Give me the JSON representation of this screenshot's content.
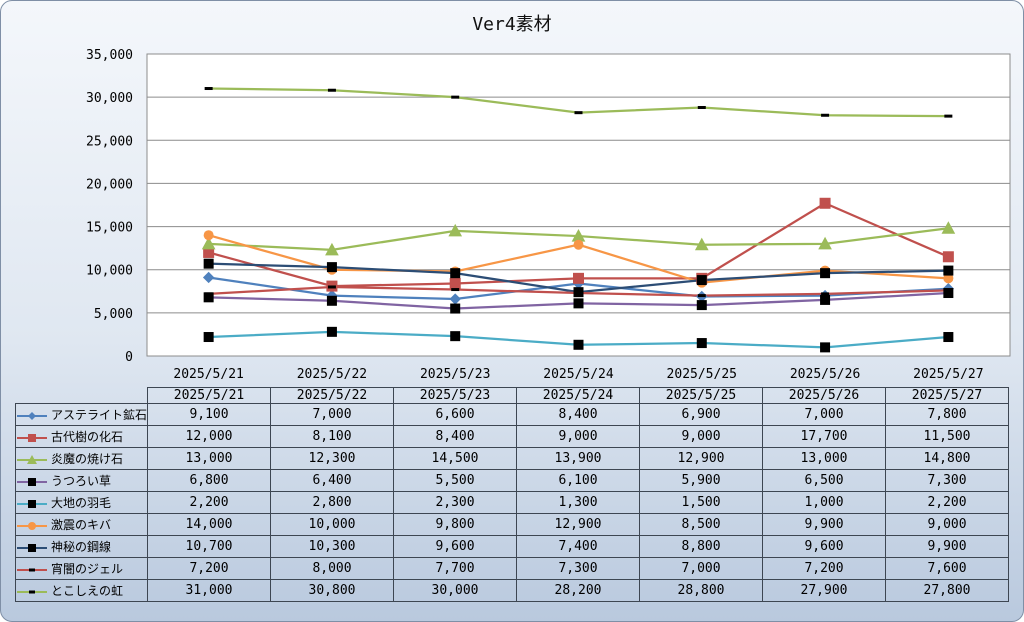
{
  "chart_data": {
    "type": "line",
    "title": "Ver4素材",
    "categories": [
      "2025/5/21",
      "2025/5/22",
      "2025/5/23",
      "2025/5/24",
      "2025/5/25",
      "2025/5/26",
      "2025/5/27"
    ],
    "ylim": [
      0,
      35000
    ],
    "yticks": [
      "0",
      "5,000",
      "10,000",
      "15,000",
      "20,000",
      "25,000",
      "30,000",
      "35,000"
    ],
    "ytick_values": [
      0,
      5000,
      10000,
      15000,
      20000,
      25000,
      30000,
      35000
    ],
    "grid": true,
    "legend_position": "data-table",
    "series": [
      {
        "name": "アステライト鉱石",
        "color": "#4f81bd",
        "marker": "diamond",
        "values": [
          9100,
          7000,
          6600,
          8400,
          6900,
          7000,
          7800
        ],
        "labels": [
          "9,100",
          "7,000",
          "6,600",
          "8,400",
          "6,900",
          "7,000",
          "7,800"
        ]
      },
      {
        "name": "古代樹の化石",
        "color": "#c0504d",
        "marker": "square",
        "values": [
          12000,
          8100,
          8400,
          9000,
          9000,
          17700,
          11500
        ],
        "labels": [
          "12,000",
          "8,100",
          "8,400",
          "9,000",
          "9,000",
          "17,700",
          "11,500"
        ]
      },
      {
        "name": "炎魔の焼け石",
        "color": "#9bbb59",
        "marker": "triangle",
        "values": [
          13000,
          12300,
          14500,
          13900,
          12900,
          13000,
          14800
        ],
        "labels": [
          "13,000",
          "12,300",
          "14,500",
          "13,900",
          "12,900",
          "13,000",
          "14,800"
        ]
      },
      {
        "name": "うつろい草",
        "color": "#8064a2",
        "marker": "square-black",
        "values": [
          6800,
          6400,
          5500,
          6100,
          5900,
          6500,
          7300
        ],
        "labels": [
          "6,800",
          "6,400",
          "5,500",
          "6,100",
          "5,900",
          "6,500",
          "7,300"
        ]
      },
      {
        "name": "大地の羽毛",
        "color": "#4bacc6",
        "marker": "square-black",
        "values": [
          2200,
          2800,
          2300,
          1300,
          1500,
          1000,
          2200
        ],
        "labels": [
          "2,200",
          "2,800",
          "2,300",
          "1,300",
          "1,500",
          "1,000",
          "2,200"
        ]
      },
      {
        "name": "激震のキバ",
        "color": "#f79646",
        "marker": "circle",
        "values": [
          14000,
          10000,
          9800,
          12900,
          8500,
          9900,
          9000
        ],
        "labels": [
          "14,000",
          "10,000",
          "9,800",
          "12,900",
          "8,500",
          "9,900",
          "9,000"
        ]
      },
      {
        "name": "神秘の鋼線",
        "color": "#2c4d75",
        "marker": "square-black",
        "values": [
          10700,
          10300,
          9600,
          7400,
          8800,
          9600,
          9900
        ],
        "labels": [
          "10,700",
          "10,300",
          "9,600",
          "7,400",
          "8,800",
          "9,600",
          "9,900"
        ]
      },
      {
        "name": "宵闇のジェル",
        "color": "#c0504d",
        "marker": "dash",
        "values": [
          7200,
          8000,
          7700,
          7300,
          7000,
          7200,
          7600
        ],
        "labels": [
          "7,200",
          "8,000",
          "7,700",
          "7,300",
          "7,000",
          "7,200",
          "7,600"
        ]
      },
      {
        "name": "とこしえの虹",
        "color": "#9bbb59",
        "marker": "dash",
        "values": [
          31000,
          30800,
          30000,
          28200,
          28800,
          27900,
          27800
        ],
        "labels": [
          "31,000",
          "30,800",
          "30,000",
          "28,200",
          "28,800",
          "27,900",
          "27,800"
        ]
      }
    ]
  }
}
